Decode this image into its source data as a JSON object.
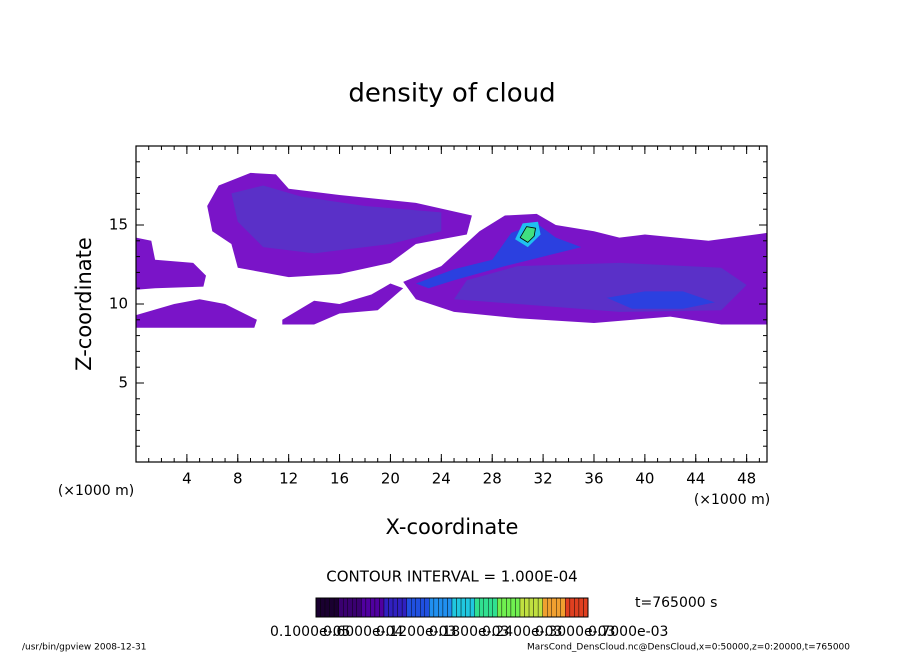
{
  "chart_data": {
    "type": "contour",
    "title": "density of cloud",
    "x_label": "X-coordinate",
    "y_label": "Z-coordinate",
    "x_unit": "(×1000 m)",
    "y_unit": "(×1000 m)",
    "xlim": [
      0,
      49.6
    ],
    "ylim": [
      0,
      20
    ],
    "xticks": [
      4,
      8,
      12,
      16,
      20,
      24,
      28,
      32,
      36,
      40,
      44,
      48
    ],
    "yticks": [
      5,
      10,
      15
    ],
    "contour_interval": "CONTOUR INTERVAL = 1.000E-04",
    "time": "t=765000 s",
    "colorbar": {
      "colors": [
        "#1a0030",
        "#3a0070",
        "#5000a0",
        "#3020c0",
        "#2050e0",
        "#2090f0",
        "#20c8e0",
        "#30e090",
        "#70f050",
        "#c0e040",
        "#f0a030",
        "#e04020"
      ],
      "labels": [
        "0.1000e-05",
        "0.6000e-04",
        "0.1200e-03",
        "0.1800e-03",
        "0.2400e-03",
        "0.3000e-03",
        "0.7000e-03"
      ]
    },
    "contours": [
      {
        "level": 1,
        "color": "#7a14c8",
        "points": [
          [
            0,
            14.2
          ],
          [
            1.2,
            14
          ],
          [
            1.5,
            12.8
          ],
          [
            4.5,
            12.6
          ],
          [
            5.5,
            11.8
          ],
          [
            5.3,
            11.1
          ],
          [
            1.5,
            11
          ],
          [
            0,
            10.9
          ]
        ]
      },
      {
        "level": 1,
        "color": "#7a14c8",
        "points": [
          [
            0,
            9.3
          ],
          [
            3,
            10
          ],
          [
            5,
            10.3
          ],
          [
            7,
            10
          ],
          [
            9.5,
            9
          ],
          [
            9.3,
            8.5
          ],
          [
            0,
            8.5
          ]
        ]
      },
      {
        "level": 1,
        "color": "#7a14c8",
        "points": [
          [
            5.6,
            16.2
          ],
          [
            6.5,
            17.5
          ],
          [
            9,
            18.3
          ],
          [
            11,
            18.2
          ],
          [
            12,
            17.3
          ],
          [
            16,
            16.9
          ],
          [
            22,
            16.4
          ],
          [
            26.4,
            15.6
          ],
          [
            26,
            14.4
          ],
          [
            22,
            13.8
          ],
          [
            20,
            12.6
          ],
          [
            16,
            11.9
          ],
          [
            12,
            11.7
          ],
          [
            8,
            12.3
          ],
          [
            7.5,
            13.8
          ],
          [
            6,
            14.6
          ]
        ]
      },
      {
        "level": 1,
        "color": "#7a14c8",
        "points": [
          [
            21,
            11.4
          ],
          [
            24,
            12.4
          ],
          [
            27,
            14.6
          ],
          [
            29,
            15.6
          ],
          [
            31.5,
            15.7
          ],
          [
            33,
            15
          ],
          [
            36,
            14.6
          ],
          [
            38,
            14.2
          ],
          [
            40,
            14.4
          ],
          [
            45,
            14
          ],
          [
            49.6,
            14.5
          ],
          [
            49.6,
            8.7
          ],
          [
            46,
            8.7
          ],
          [
            42,
            9.2
          ],
          [
            36,
            8.8
          ],
          [
            30,
            9.1
          ],
          [
            25,
            9.5
          ],
          [
            22,
            10.3
          ]
        ]
      },
      {
        "level": 1,
        "color": "#7a14c8",
        "points": [
          [
            11.5,
            9
          ],
          [
            14,
            10.2
          ],
          [
            16,
            10
          ],
          [
            18.5,
            10.6
          ],
          [
            20,
            11.3
          ],
          [
            21,
            11
          ],
          [
            19,
            9.6
          ],
          [
            16,
            9.4
          ],
          [
            14,
            8.7
          ],
          [
            11.5,
            8.7
          ]
        ]
      },
      {
        "level": 2,
        "color": "#5a30c8",
        "points": [
          [
            7.5,
            17
          ],
          [
            10,
            17.5
          ],
          [
            13,
            16.8
          ],
          [
            18,
            16.2
          ],
          [
            24,
            15.8
          ],
          [
            24,
            14.6
          ],
          [
            20,
            13.8
          ],
          [
            14,
            13.2
          ],
          [
            10,
            13.6
          ],
          [
            8,
            15.2
          ]
        ]
      },
      {
        "level": 2,
        "color": "#5a30c8",
        "points": [
          [
            26,
            11.5
          ],
          [
            30,
            12.4
          ],
          [
            38,
            12.6
          ],
          [
            46,
            12.3
          ],
          [
            48,
            11.2
          ],
          [
            46,
            9.6
          ],
          [
            38,
            9.5
          ],
          [
            30,
            10
          ],
          [
            25,
            10.3
          ]
        ]
      },
      {
        "level": 3,
        "color": "#2b40e0",
        "points": [
          [
            37,
            10.4
          ],
          [
            40,
            10.8
          ],
          [
            43,
            10.8
          ],
          [
            45.5,
            10.1
          ],
          [
            43,
            9.7
          ],
          [
            39,
            9.7
          ]
        ]
      },
      {
        "level": 3,
        "color": "#2b40e0",
        "points": [
          [
            22,
            11.3
          ],
          [
            25,
            12.2
          ],
          [
            28,
            12.8
          ],
          [
            29.5,
            14.5
          ],
          [
            31.5,
            15.1
          ],
          [
            33,
            14.2
          ],
          [
            35,
            13.6
          ],
          [
            32,
            13
          ],
          [
            29,
            12.4
          ],
          [
            25,
            11.5
          ],
          [
            23,
            11
          ]
        ]
      },
      {
        "level": 4,
        "color": "#20c0f0",
        "points": [
          [
            29.8,
            14.1
          ],
          [
            30.4,
            15.1
          ],
          [
            31.6,
            15.2
          ],
          [
            31.8,
            14.4
          ],
          [
            30.8,
            13.6
          ]
        ]
      },
      {
        "level": 5,
        "color": "#40e080",
        "points": [
          [
            30.2,
            14.2
          ],
          [
            30.7,
            14.9
          ],
          [
            31.4,
            14.8
          ],
          [
            31.3,
            14.3
          ],
          [
            30.8,
            13.9
          ]
        ]
      }
    ],
    "footer_left": "/usr/bin/gpview   2008-12-31",
    "footer_right": "MarsCond_DensCloud.nc@DensCloud,x=0:50000,z=0:20000,t=765000"
  }
}
